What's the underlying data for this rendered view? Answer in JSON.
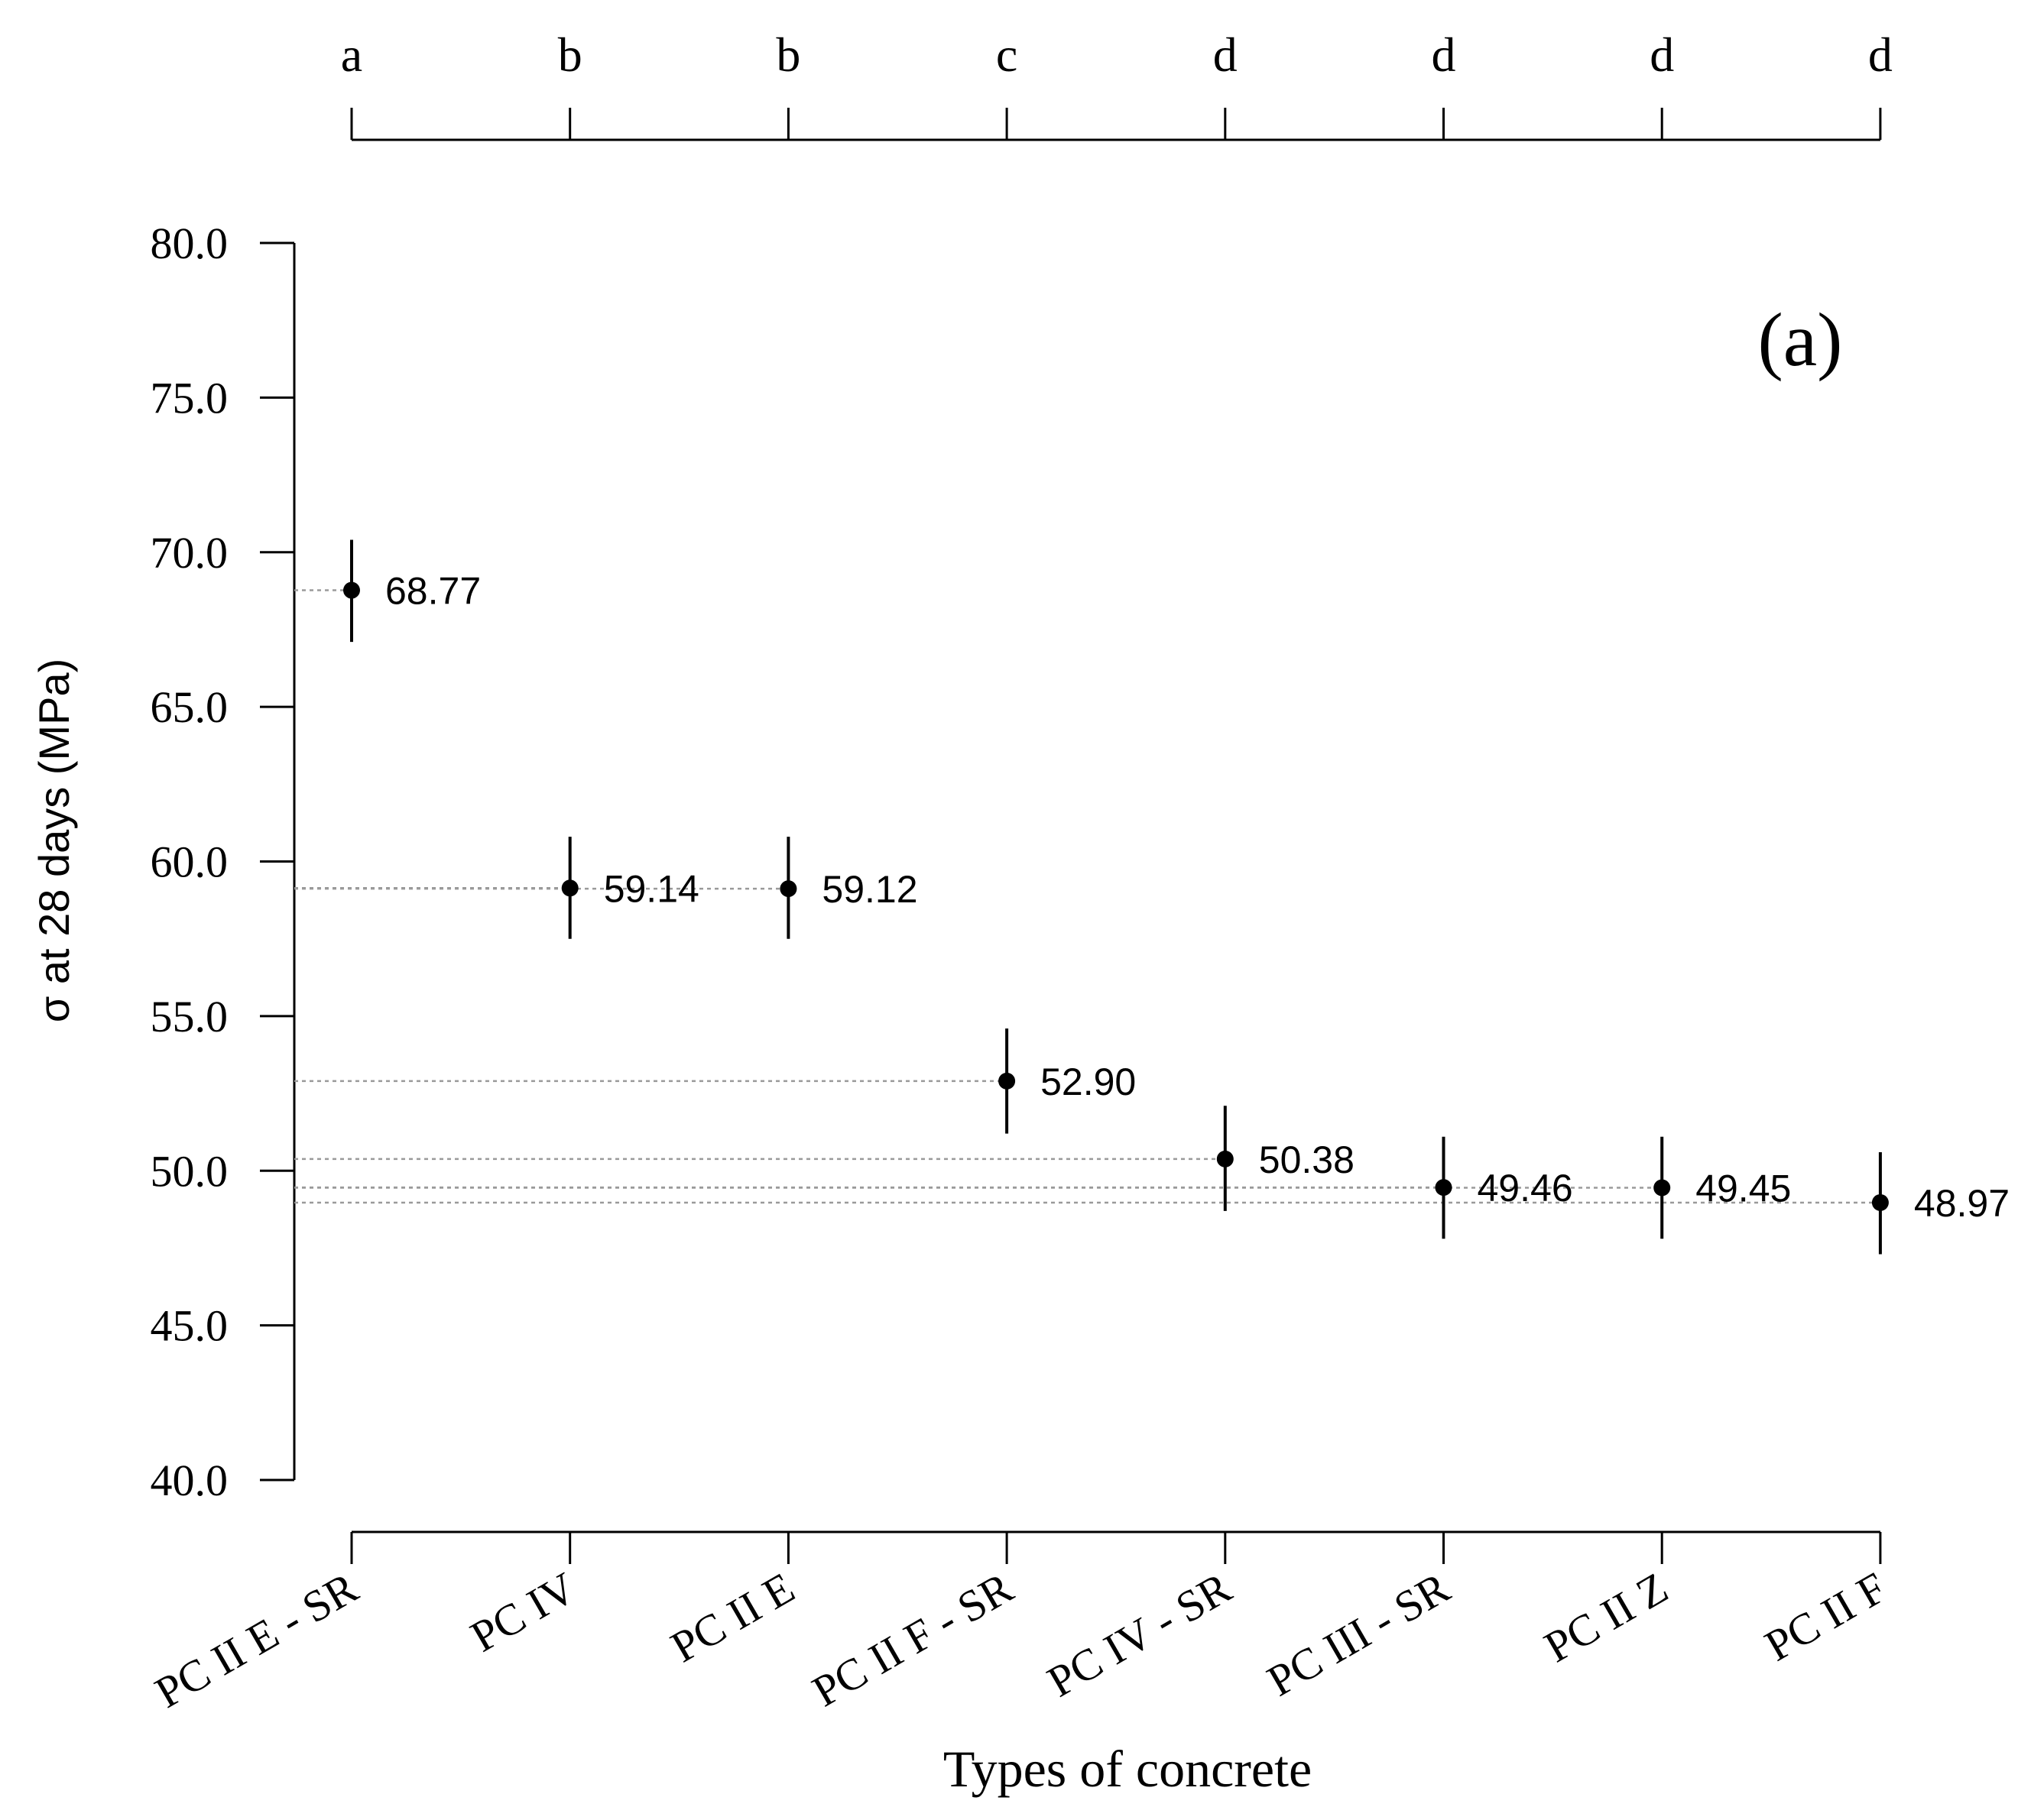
{
  "chart_data": {
    "type": "scatter",
    "panel_label": "(a)",
    "xlabel": "Types of concrete",
    "ylabel": "σ at 28 days (MPa)",
    "ylim": [
      40,
      80
    ],
    "yticks": [
      "40.0",
      "45.0",
      "50.0",
      "55.0",
      "60.0",
      "65.0",
      "70.0",
      "75.0",
      "80.0"
    ],
    "grid": false,
    "categories": [
      "PC II E - SR",
      "PC IV",
      "PC II E",
      "PC II F - SR",
      "PC IV - SR",
      "PC III - SR",
      "PC II Z",
      "PC II F"
    ],
    "group_letters": [
      "a",
      "b",
      "b",
      "c",
      "d",
      "d",
      "d",
      "d"
    ],
    "values": [
      68.77,
      59.14,
      59.12,
      52.9,
      50.38,
      49.46,
      49.45,
      48.97
    ],
    "value_labels": [
      "68.77",
      "59.14",
      "59.12",
      "52.90",
      "50.38",
      "49.46",
      "49.45",
      "48.97"
    ],
    "error_low": [
      67.1,
      57.5,
      57.5,
      51.2,
      48.7,
      47.8,
      47.8,
      47.3
    ],
    "error_high": [
      70.4,
      60.8,
      60.8,
      54.6,
      52.1,
      51.1,
      51.1,
      50.6
    ]
  }
}
